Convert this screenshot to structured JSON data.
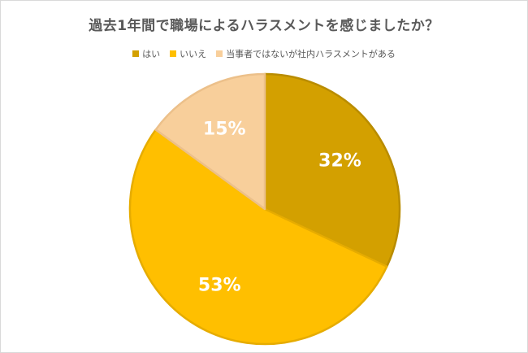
{
  "chart_data": {
    "type": "pie",
    "title": "過去1年間で職場によるハラスメントを感じましたか？",
    "legend_position": "top",
    "categories": [
      "はい",
      "いいえ",
      "当事者ではないが社内ハラスメントがある"
    ],
    "values": [
      32,
      53,
      15
    ],
    "labels": [
      "32%",
      "53%",
      "15%"
    ],
    "colors": [
      "#d3a000",
      "#ffbf00",
      "#f8cf9b"
    ],
    "edge_colors": [
      "#b98c00",
      "#e6ac00",
      "#ecc08a"
    ],
    "start_angle_deg": 0,
    "direction": "clockwise"
  }
}
